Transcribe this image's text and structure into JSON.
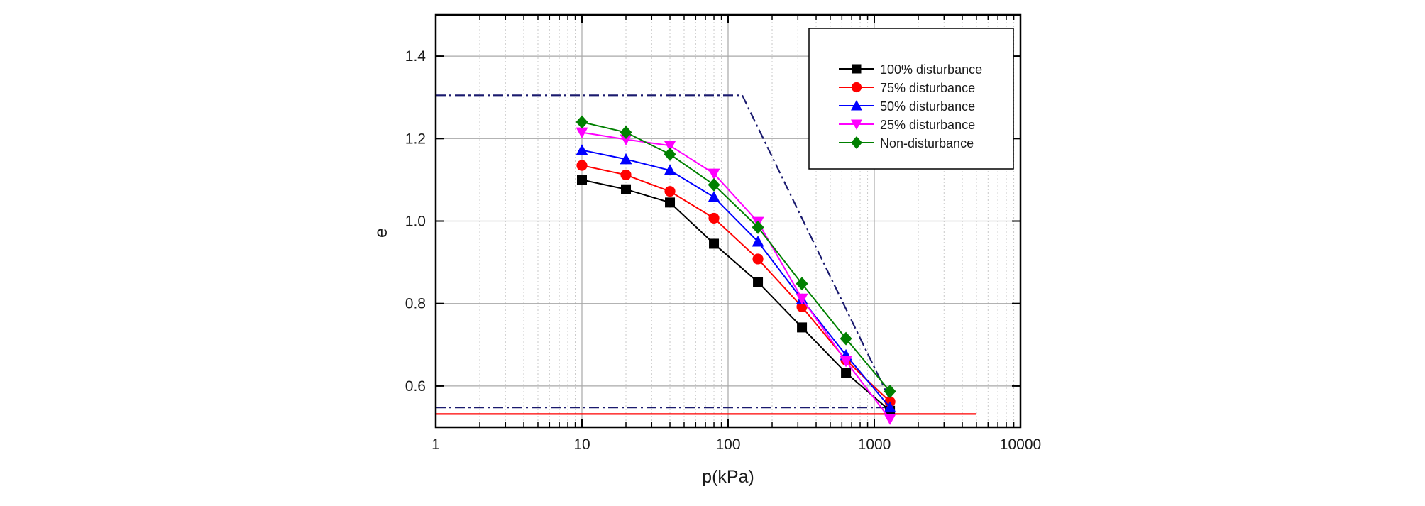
{
  "chart_data": {
    "type": "line",
    "title": "",
    "xlabel": "p(kPa)",
    "ylabel": "e",
    "xscale": "log",
    "xlim": [
      1,
      10000
    ],
    "ylim": [
      0.5,
      1.5
    ],
    "xticks": [
      1,
      10,
      100,
      1000,
      10000
    ],
    "xtick_labels": [
      "1",
      "10",
      "100",
      "1000",
      "10000"
    ],
    "yticks": [
      0.6,
      0.8,
      1.0,
      1.2,
      1.4
    ],
    "ytick_labels": [
      "0.6",
      "0.8",
      "1.0",
      "1.2",
      "1.4"
    ],
    "grid": true,
    "legend_position": "top-right",
    "x": [
      10,
      20,
      40,
      80,
      160,
      320,
      640,
      1280
    ],
    "series": [
      {
        "name": "100% disturbance",
        "color": "#000000",
        "marker": "square",
        "values": [
          1.1,
          1.077,
          1.045,
          0.945,
          0.852,
          0.742,
          0.632,
          0.54
        ]
      },
      {
        "name": "75% disturbance",
        "color": "#ff0000",
        "marker": "circle",
        "values": [
          1.135,
          1.112,
          1.072,
          1.007,
          0.908,
          0.792,
          0.663,
          0.562
        ]
      },
      {
        "name": "50% disturbance",
        "color": "#0000ff",
        "marker": "triangle-up",
        "values": [
          1.172,
          1.15,
          1.123,
          1.058,
          0.95,
          0.81,
          0.675,
          0.548
        ]
      },
      {
        "name": "25% disturbance",
        "color": "#ff00ff",
        "marker": "triangle-down",
        "values": [
          1.215,
          1.198,
          1.183,
          1.115,
          0.998,
          0.812,
          0.66,
          0.52
        ]
      },
      {
        "name": "Non-disturbance",
        "color": "#008000",
        "marker": "diamond",
        "values": [
          1.24,
          1.215,
          1.162,
          1.088,
          0.985,
          0.848,
          0.715,
          0.587
        ]
      }
    ],
    "reference_lines": [
      {
        "name": "upper-construction-line",
        "color": "#1a1a6e",
        "style": "dash-dot",
        "x": [
          1,
          125,
          1330
        ],
        "y": [
          1.305,
          1.305,
          0.555
        ]
      },
      {
        "name": "lower-construction-line",
        "color": "#1a1a6e",
        "style": "dash-dot",
        "x": [
          1,
          1330
        ],
        "y": [
          0.548,
          0.548
        ]
      },
      {
        "name": "minimum-void-ratio-line",
        "color": "#ff0000",
        "style": "solid",
        "x": [
          1,
          5000
        ],
        "y": [
          0.532,
          0.532
        ]
      }
    ]
  }
}
